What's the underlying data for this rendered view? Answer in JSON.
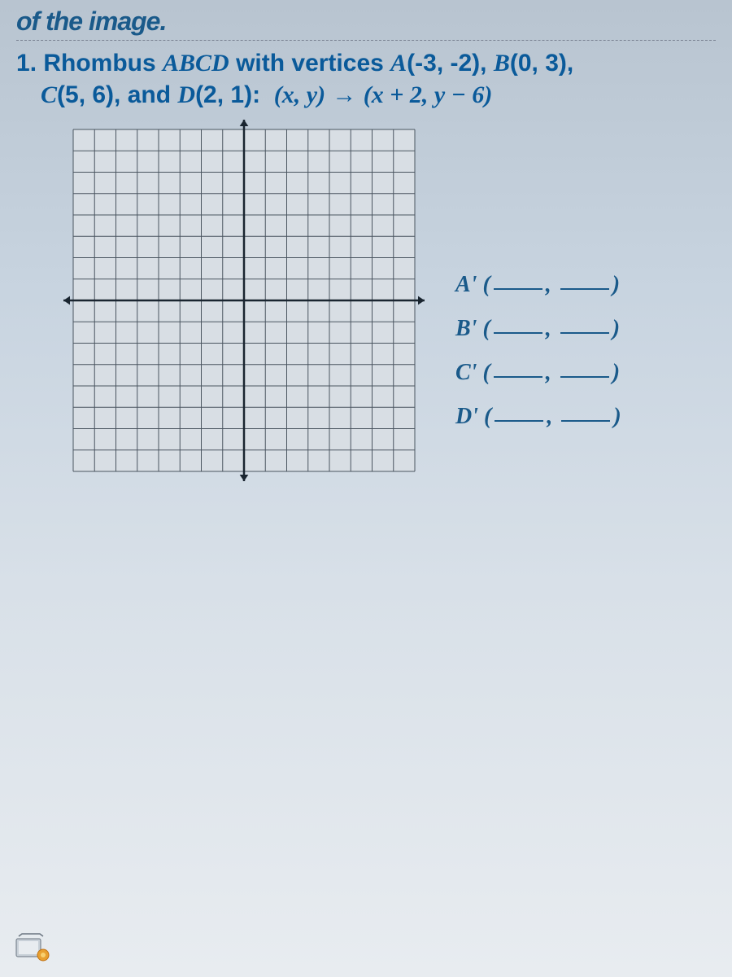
{
  "header": "of the image.",
  "problem": {
    "number": "1",
    "line1_pre": "Rhombus ",
    "line1_label": "ABCD",
    "line1_mid": " with vertices ",
    "vA_label": "A",
    "vA_coords": "(-3, -2)",
    "vB_label": "B",
    "vB_coords": "(0, 3)",
    "vC_label": "C",
    "vC_coords": "(5, 6)",
    "vD_label": "D",
    "vD_coords": "(2, 1)",
    "transform_lhs": "(x, y)",
    "transform_arrow": "→",
    "transform_rhs": "(x + 2, y − 6)"
  },
  "grid": {
    "xmin": -8,
    "xmax": 8,
    "ymin": -8,
    "ymax": 8,
    "majorStep": 1,
    "grid_color": "#4a5560",
    "axis_color": "#1a2530",
    "background_color": "#d8dee4",
    "arrow_size": 8
  },
  "answers": [
    {
      "label": "A'"
    },
    {
      "label": "B'"
    },
    {
      "label": "C'"
    },
    {
      "label": "D'"
    }
  ],
  "answer_text_color": "#1a5a8a"
}
